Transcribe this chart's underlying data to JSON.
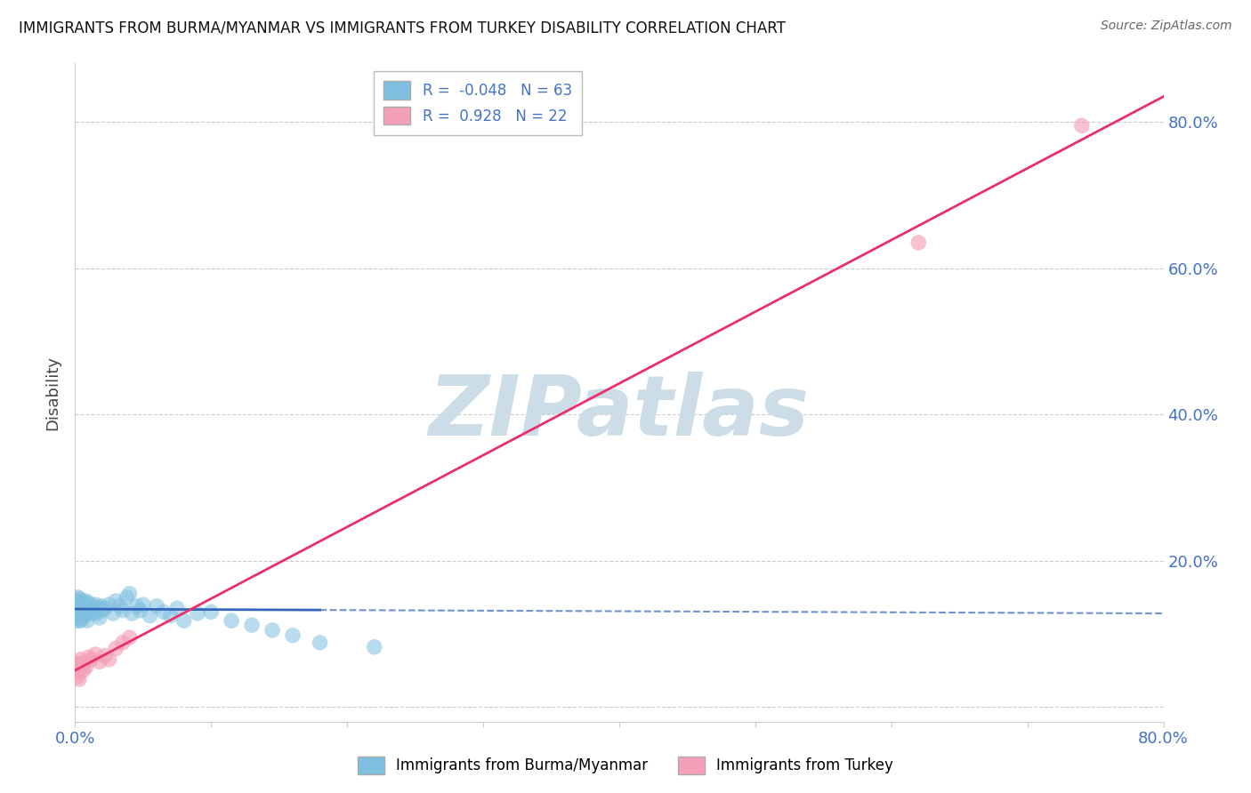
{
  "title": "IMMIGRANTS FROM BURMA/MYANMAR VS IMMIGRANTS FROM TURKEY DISABILITY CORRELATION CHART",
  "source": "Source: ZipAtlas.com",
  "ylabel": "Disability",
  "xlim": [
    0.0,
    0.8
  ],
  "ylim": [
    -0.02,
    0.88
  ],
  "burma_R": -0.048,
  "burma_N": 63,
  "turkey_R": 0.928,
  "turkey_N": 22,
  "burma_color": "#7fbfdf",
  "turkey_color": "#f4a0b8",
  "burma_line_color": "#3366bb",
  "turkey_line_color": "#e8306a",
  "burma_scatter_x": [
    0.001,
    0.001,
    0.001,
    0.002,
    0.002,
    0.002,
    0.002,
    0.003,
    0.003,
    0.003,
    0.003,
    0.004,
    0.004,
    0.004,
    0.005,
    0.005,
    0.005,
    0.006,
    0.006,
    0.007,
    0.007,
    0.008,
    0.008,
    0.009,
    0.009,
    0.01,
    0.01,
    0.011,
    0.012,
    0.013,
    0.014,
    0.015,
    0.016,
    0.017,
    0.018,
    0.019,
    0.02,
    0.022,
    0.025,
    0.028,
    0.03,
    0.033,
    0.035,
    0.038,
    0.04,
    0.042,
    0.045,
    0.048,
    0.05,
    0.055,
    0.06,
    0.065,
    0.07,
    0.075,
    0.08,
    0.09,
    0.1,
    0.115,
    0.13,
    0.145,
    0.16,
    0.18,
    0.22
  ],
  "burma_scatter_y": [
    0.135,
    0.145,
    0.125,
    0.13,
    0.14,
    0.118,
    0.15,
    0.128,
    0.138,
    0.122,
    0.148,
    0.132,
    0.142,
    0.118,
    0.135,
    0.145,
    0.12,
    0.138,
    0.128,
    0.142,
    0.125,
    0.13,
    0.145,
    0.118,
    0.138,
    0.132,
    0.142,
    0.135,
    0.128,
    0.138,
    0.13,
    0.14,
    0.128,
    0.135,
    0.122,
    0.138,
    0.132,
    0.135,
    0.14,
    0.128,
    0.145,
    0.138,
    0.132,
    0.15,
    0.155,
    0.128,
    0.138,
    0.132,
    0.14,
    0.125,
    0.138,
    0.13,
    0.125,
    0.135,
    0.118,
    0.128,
    0.13,
    0.118,
    0.112,
    0.105,
    0.098,
    0.088,
    0.082
  ],
  "turkey_scatter_x": [
    0.001,
    0.001,
    0.002,
    0.002,
    0.003,
    0.003,
    0.004,
    0.005,
    0.006,
    0.007,
    0.008,
    0.01,
    0.012,
    0.015,
    0.018,
    0.022,
    0.025,
    0.03,
    0.035,
    0.04,
    0.62,
    0.74
  ],
  "turkey_scatter_y": [
    0.055,
    0.048,
    0.06,
    0.042,
    0.058,
    0.038,
    0.065,
    0.055,
    0.05,
    0.06,
    0.055,
    0.068,
    0.065,
    0.072,
    0.062,
    0.07,
    0.065,
    0.08,
    0.088,
    0.095,
    0.635,
    0.795
  ],
  "watermark_text": "ZIPatlas",
  "watermark_color": "#ccdde8",
  "background_color": "#ffffff",
  "grid_color": "#cccccc",
  "title_color": "#111111",
  "tick_color": "#4472c4",
  "legend_border_color": "#bbbbbb"
}
